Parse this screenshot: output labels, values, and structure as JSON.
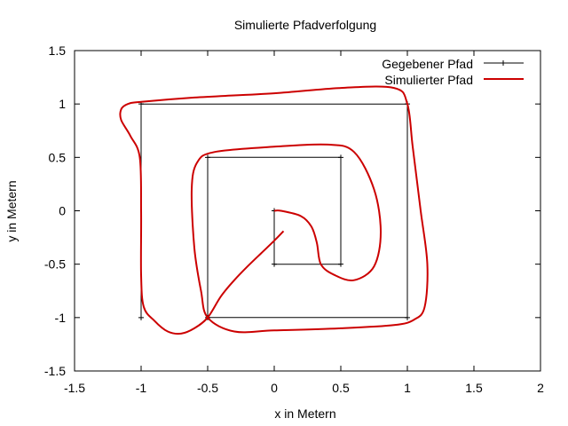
{
  "chart_data": {
    "type": "line",
    "title": "Simulierte Pfadverfolgung",
    "xlabel": "x in Metern",
    "ylabel": "y in Metern",
    "xlim": [
      -1.5,
      2
    ],
    "ylim": [
      -1.5,
      1.5
    ],
    "xticks": [
      "-1.5",
      "-1",
      "-0.5",
      "0",
      "0.5",
      "1",
      "1.5",
      "2"
    ],
    "yticks": [
      "-1.5",
      "-1",
      "-0.5",
      "0",
      "0.5",
      "1",
      "1.5"
    ],
    "grid": false,
    "legend_position": "top-right",
    "series": [
      {
        "name": "Gegebener Pfad",
        "color": "#000000",
        "marker": "plus",
        "x": [
          0,
          0,
          0.5,
          0.5,
          -0.5,
          -0.5,
          1,
          1,
          -1,
          -1
        ],
        "y": [
          0,
          -0.5,
          -0.5,
          0.5,
          0.5,
          -1,
          -1,
          1,
          1,
          -1
        ]
      },
      {
        "name": "Simulierter Pfad",
        "color": "#cc0000",
        "marker": "none",
        "x": [
          0.07,
          0.0,
          -0.1,
          -0.2,
          -0.3,
          -0.4,
          -0.5,
          -0.6,
          -0.7,
          -0.8,
          -0.9,
          -0.98,
          -1.0,
          -1.0,
          -1.01,
          -1.08,
          -1.15,
          -1.15,
          -1.1,
          -1.0,
          -0.6,
          0.0,
          0.5,
          0.9,
          1.0,
          1.04,
          1.1,
          1.15,
          1.13,
          1.05,
          0.9,
          0.5,
          0.0,
          -0.3,
          -0.5,
          -0.55,
          -0.6,
          -0.62,
          -0.58,
          -0.45,
          0.0,
          0.4,
          0.6,
          0.75,
          0.8,
          0.75,
          0.6,
          0.45,
          0.35,
          0.32,
          0.28,
          0.2,
          0.05,
          0.0
        ],
        "y": [
          -0.19,
          -0.28,
          -0.4,
          -0.52,
          -0.65,
          -0.8,
          -1.0,
          -1.1,
          -1.15,
          -1.13,
          -1.03,
          -0.9,
          -0.6,
          0.0,
          0.5,
          0.7,
          0.85,
          0.95,
          1.0,
          1.02,
          1.06,
          1.1,
          1.15,
          1.15,
          1.0,
          0.6,
          0.0,
          -0.5,
          -0.9,
          -1.02,
          -1.07,
          -1.1,
          -1.12,
          -1.13,
          -1.0,
          -0.75,
          -0.35,
          0.2,
          0.45,
          0.55,
          0.6,
          0.62,
          0.55,
          0.2,
          -0.2,
          -0.52,
          -0.65,
          -0.6,
          -0.5,
          -0.3,
          -0.15,
          -0.05,
          0.0,
          0.0
        ]
      }
    ]
  }
}
